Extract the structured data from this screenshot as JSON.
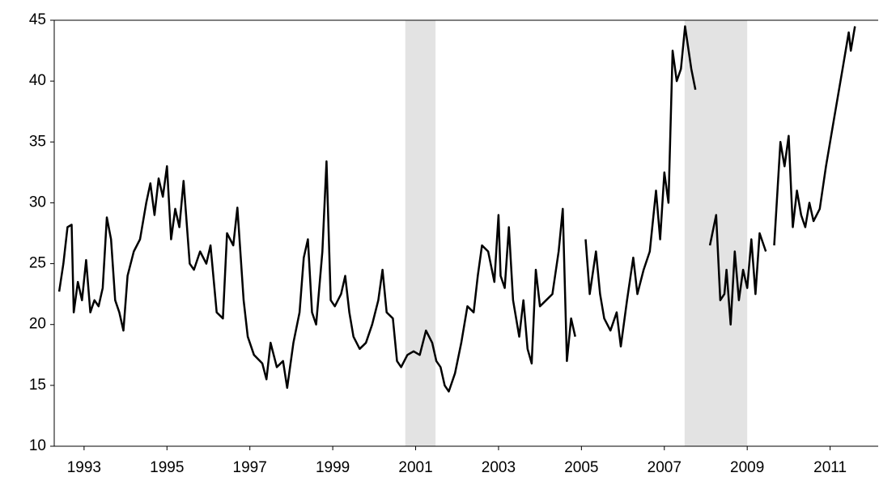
{
  "chart_data": {
    "type": "line",
    "xlim": [
      1992.78,
      2012.66
    ],
    "ylim": [
      10,
      45
    ],
    "yticks": [
      10,
      15,
      20,
      25,
      30,
      35,
      40,
      45
    ],
    "xticks": [
      {
        "value": 1993.5,
        "label": "1993"
      },
      {
        "value": 1995.5,
        "label": "1995"
      },
      {
        "value": 1997.5,
        "label": "1997"
      },
      {
        "value": 1999.5,
        "label": "1999"
      },
      {
        "value": 2001.5,
        "label": "2001"
      },
      {
        "value": 2003.5,
        "label": "2003"
      },
      {
        "value": 2005.5,
        "label": "2005"
      },
      {
        "value": 2007.5,
        "label": "2007"
      },
      {
        "value": 2009.5,
        "label": "2009"
      },
      {
        "value": 2011.5,
        "label": "2011"
      }
    ],
    "shaded_regions": [
      [
        2001.25,
        2001.98
      ],
      [
        2007.99,
        2009.5
      ]
    ],
    "shade_color": "#e3e3e3",
    "series": [
      {
        "color": "#000000",
        "x": [
          1992.9,
          1993.0,
          1993.1,
          1993.2,
          1993.25,
          1993.35,
          1993.45,
          1993.55,
          1993.65,
          1993.75,
          1993.85,
          1993.95,
          1994.05,
          1994.15,
          1994.25,
          1994.35,
          1994.45,
          1994.55,
          1994.7,
          1994.85,
          1995.0,
          1995.1,
          1995.2,
          1995.3,
          1995.4,
          1995.5,
          1995.6,
          1995.7,
          1995.8,
          1995.9,
          1996.05,
          1996.15,
          1996.3,
          1996.45,
          1996.55,
          1996.7,
          1996.85,
          1996.95,
          1997.1,
          1997.2,
          1997.35,
          1997.45,
          1997.6,
          1997.8,
          1997.9,
          1998.0,
          1998.15,
          1998.3,
          1998.4,
          1998.55,
          1998.7,
          1998.8,
          1998.9,
          1999.0,
          1999.1,
          1999.25,
          1999.35,
          1999.45,
          1999.55,
          1999.7,
          1999.8,
          1999.9,
          2000.0,
          2000.15,
          2000.3,
          2000.45,
          2000.6,
          2000.7,
          2000.8,
          2000.95,
          2001.05,
          2001.15,
          2001.3,
          2001.45,
          2001.6,
          2001.75,
          2001.9,
          2002.0,
          2002.1,
          2002.2,
          2002.3,
          2002.45,
          2002.6,
          2002.75,
          2002.9,
          2003.0,
          2003.1,
          2003.25,
          2003.4,
          2003.5,
          2003.55,
          2003.65,
          2003.75,
          2003.85,
          2004.0,
          2004.1,
          2004.2,
          2004.3,
          2004.4,
          2004.5,
          2004.65,
          2004.8,
          2004.95,
          2005.05,
          2005.15,
          2005.25,
          2005.35,
          2005.45,
          2005.6,
          2005.7,
          2005.85,
          2005.95,
          2006.05,
          2006.2,
          2006.35,
          2006.45,
          2006.6,
          2006.75,
          2006.85,
          2007.0,
          2007.15,
          2007.3,
          2007.4,
          2007.5,
          2007.6,
          2007.7,
          2007.8,
          2007.9,
          2008.0,
          2008.15,
          2008.25,
          2008.4,
          2008.6,
          2008.75,
          2008.85,
          2008.95,
          2009.0,
          2009.1,
          2009.2,
          2009.3,
          2009.4,
          2009.5,
          2009.6,
          2009.7,
          2009.8,
          2009.95,
          2010.05,
          2010.15,
          2010.3,
          2010.4,
          2010.5,
          2010.6,
          2010.7,
          2010.8,
          2010.9,
          2011.0,
          2011.1,
          2011.25,
          2011.4,
          2011.6,
          2011.8,
          2011.95,
          2012.0,
          2012.1
        ],
        "values": [
          22.7,
          25,
          28,
          28.2,
          21,
          23.5,
          22,
          25.3,
          21,
          22,
          21.5,
          23,
          28.8,
          27,
          22,
          21,
          19.5,
          24,
          26,
          27,
          30,
          31.6,
          29,
          32,
          30.5,
          33,
          27,
          29.5,
          28,
          31.8,
          25,
          24.5,
          26,
          25,
          26.5,
          21,
          20.5,
          27.5,
          26.5,
          29.6,
          22,
          19,
          17.5,
          16.8,
          15.5,
          18.5,
          16.5,
          17,
          14.8,
          18.5,
          21,
          25.5,
          27,
          21,
          20,
          26,
          33.4,
          22,
          21.5,
          22.5,
          24,
          21,
          19,
          18,
          18.5,
          20,
          22,
          24.5,
          21,
          20.5,
          17,
          16.5,
          17.5,
          17.8,
          17.5,
          19.5,
          18.5,
          17,
          16.5,
          15,
          14.5,
          16,
          18.5,
          21.5,
          21,
          24,
          26.5,
          26,
          23.5,
          29,
          24,
          23,
          28,
          22,
          19,
          22,
          18,
          16.8,
          24.5,
          21.5,
          22,
          22.5,
          26,
          29.5,
          17,
          20.5,
          19,
          null,
          27,
          22.5,
          26,
          22.5,
          20.5,
          19.5,
          21,
          18.2,
          22,
          25.5,
          22.5,
          24.5,
          26,
          31,
          27,
          32.5,
          30,
          42.5,
          40,
          41,
          44.5,
          41,
          39.3,
          null,
          26.5,
          29,
          22,
          22.5,
          24.5,
          20,
          26,
          22,
          24.5,
          23,
          27,
          22.5,
          27.5,
          26,
          null,
          26.5,
          35,
          33,
          35.5,
          28,
          31,
          29,
          28,
          30,
          28.5,
          29.5,
          33,
          37,
          41,
          44,
          42.5,
          44.5
        ]
      }
    ]
  }
}
